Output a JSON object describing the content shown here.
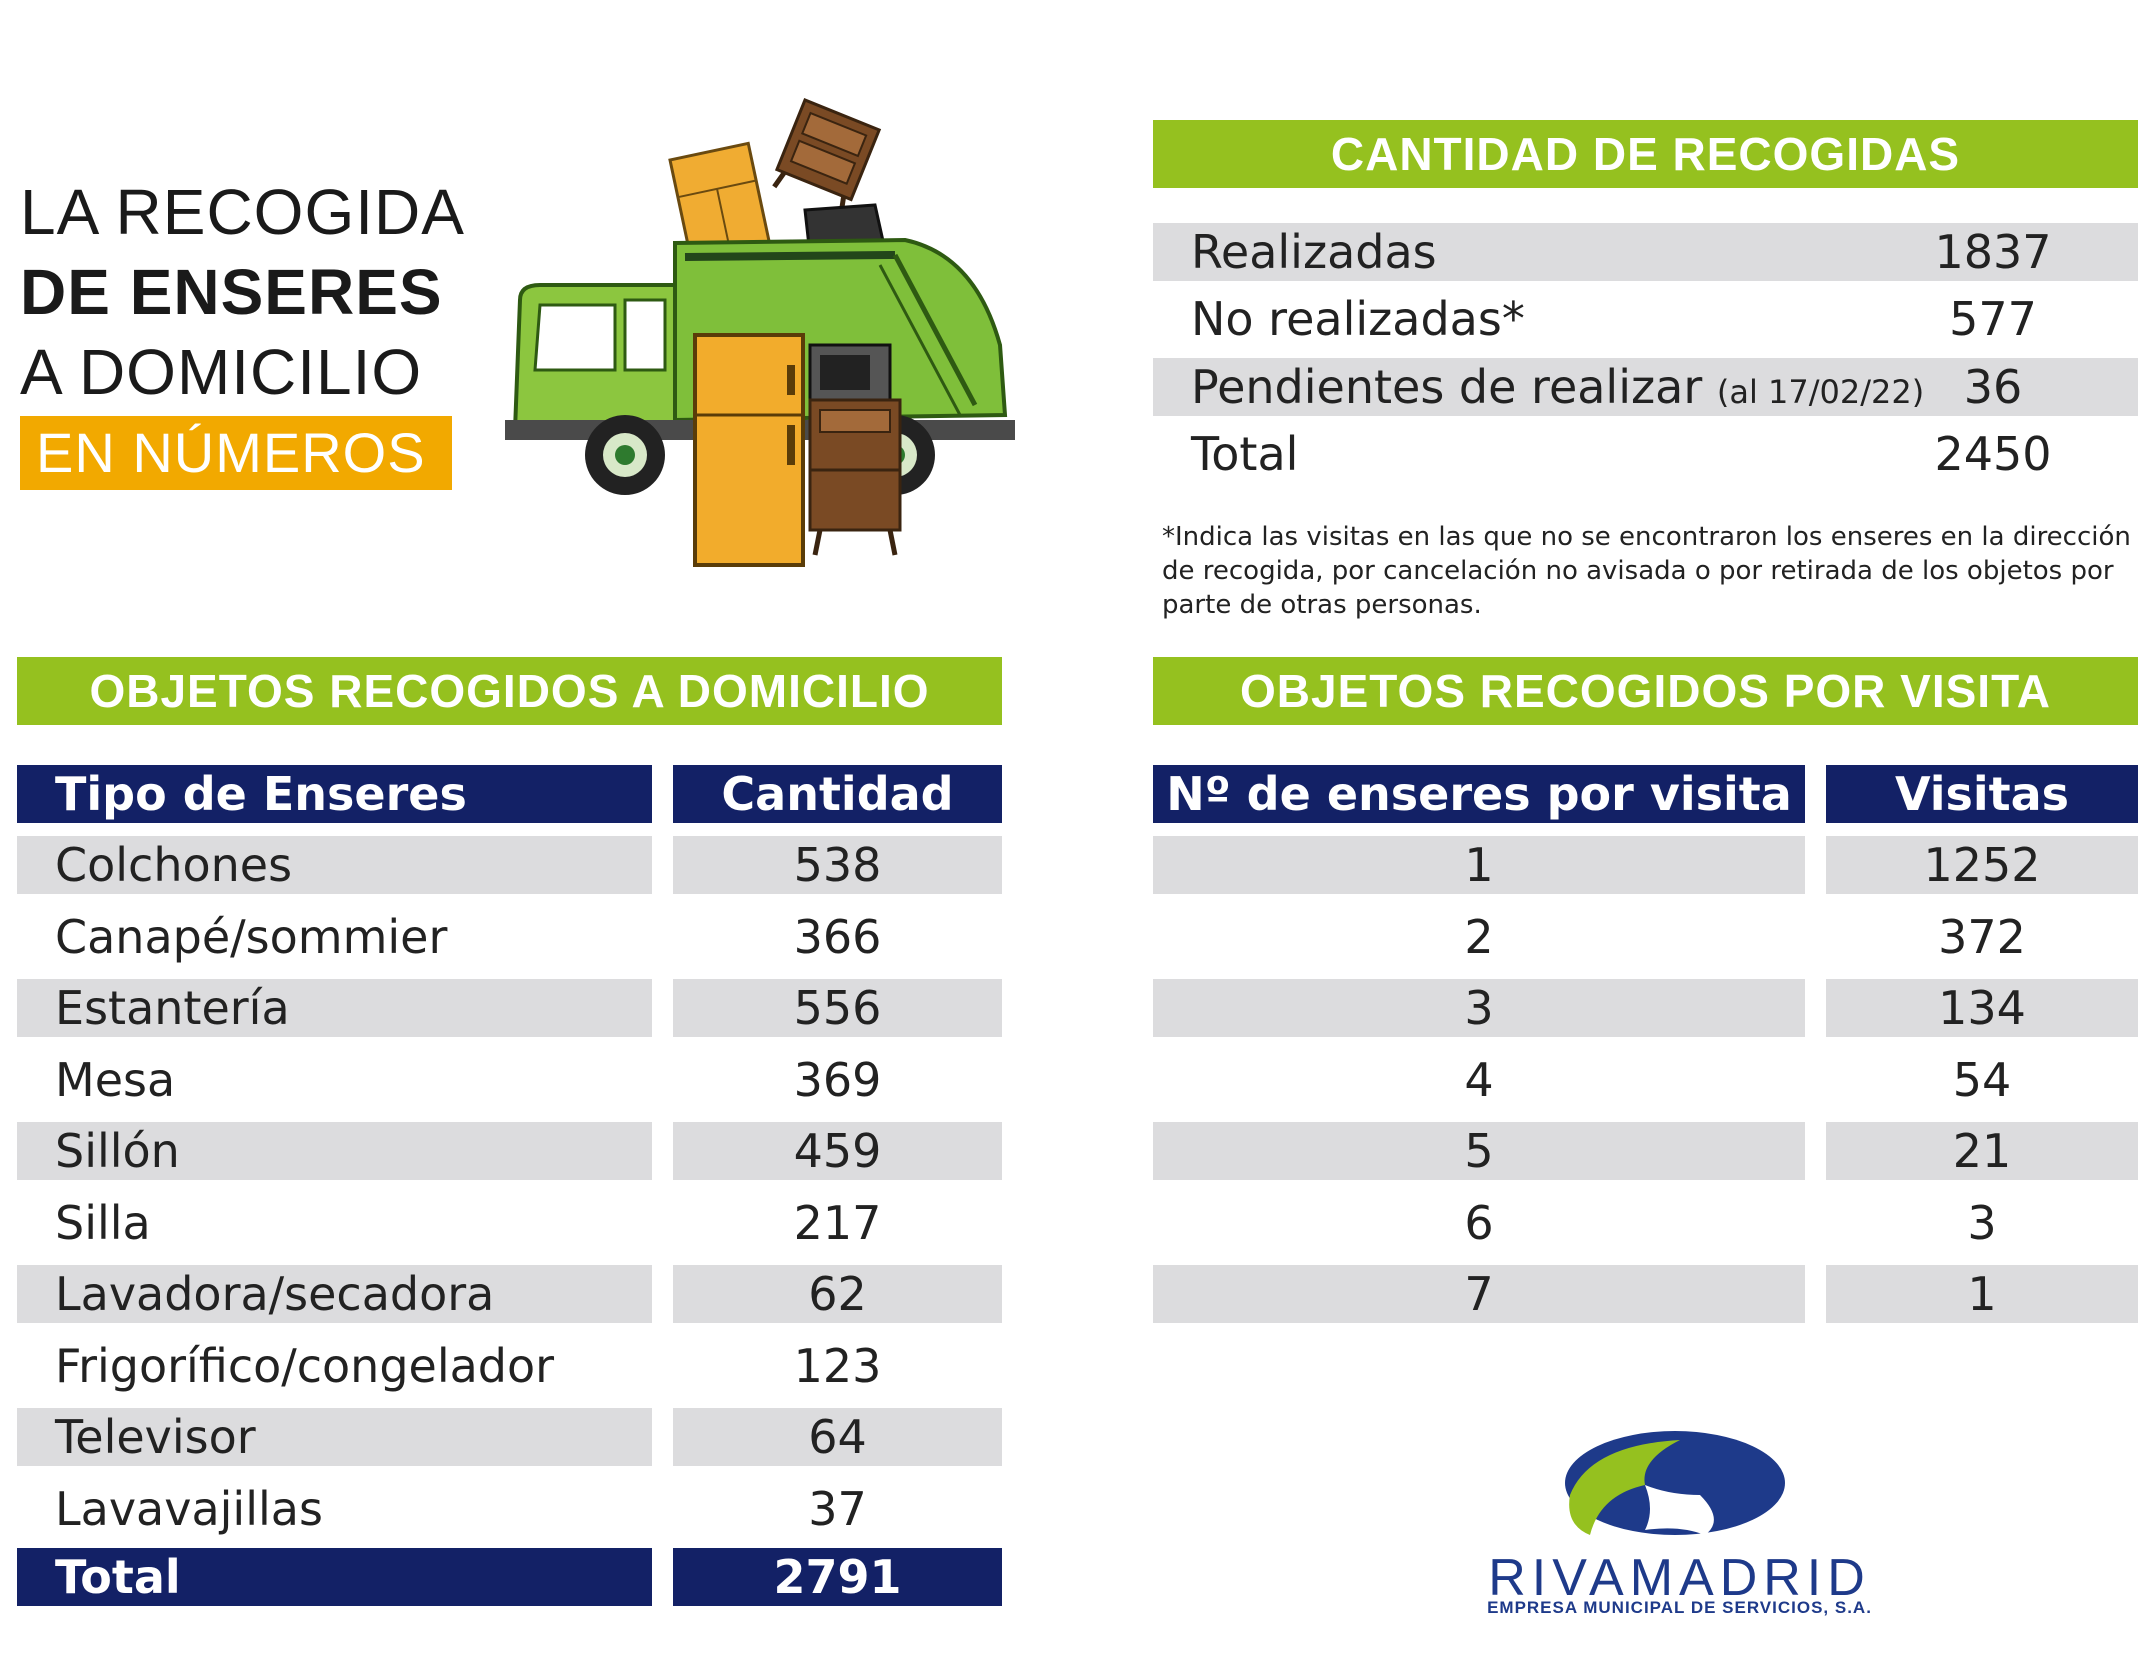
{
  "title": {
    "line1": "LA RECOGIDA",
    "line2": "DE ENSERES",
    "line3": "A DOMICILIO",
    "badge": "EN NÚMEROS"
  },
  "colors": {
    "green": "#95c11f",
    "navy": "#132166",
    "orange": "#f2a900",
    "row_grey": "#dcdcde"
  },
  "recogidas": {
    "header": "CANTIDAD DE RECOGIDAS",
    "rows": [
      {
        "label": "Realizadas",
        "note": "",
        "value": "1837"
      },
      {
        "label": "No realizadas*",
        "note": "",
        "value": "577"
      },
      {
        "label": "Pendientes de realizar",
        "note": "(al 17/02/22)",
        "value": "36"
      },
      {
        "label": "Total",
        "note": "",
        "value": "2450"
      }
    ],
    "footnote": "*Indica las visitas en las que no se encontraron los enseres en la dirección de recogida, por cancelación no avisada o por retirada de los objetos por parte de otras personas."
  },
  "objetos_domicilio": {
    "header": "OBJETOS RECOGIDOS A DOMICILIO",
    "col1": "Tipo de Enseres",
    "col2": "Cantidad",
    "rows": [
      {
        "tipo": "Colchones",
        "cantidad": "538"
      },
      {
        "tipo": "Canapé/sommier",
        "cantidad": "366"
      },
      {
        "tipo": "Estantería",
        "cantidad": "556"
      },
      {
        "tipo": "Mesa",
        "cantidad": "369"
      },
      {
        "tipo": "Sillón",
        "cantidad": "459"
      },
      {
        "tipo": "Silla",
        "cantidad": "217"
      },
      {
        "tipo": "Lavadora/secadora",
        "cantidad": "62"
      },
      {
        "tipo": "Frigorífico/congelador",
        "cantidad": "123"
      },
      {
        "tipo": "Televisor",
        "cantidad": "64"
      },
      {
        "tipo": "Lavavajillas",
        "cantidad": "37"
      }
    ],
    "total_label": "Total",
    "total_value": "2791"
  },
  "objetos_visita": {
    "header": "OBJETOS RECOGIDOS POR VISITA",
    "col1": "Nº de enseres por visita",
    "col2": "Visitas",
    "rows": [
      {
        "n": "1",
        "visitas": "1252"
      },
      {
        "n": "2",
        "visitas": "372"
      },
      {
        "n": "3",
        "visitas": "134"
      },
      {
        "n": "4",
        "visitas": "54"
      },
      {
        "n": "5",
        "visitas": "21"
      },
      {
        "n": "6",
        "visitas": "3"
      },
      {
        "n": "7",
        "visitas": "1"
      }
    ]
  },
  "logo": {
    "name": "RIVAMADRID",
    "subtitle": "EMPRESA MUNICIPAL DE SERVICIOS, S.A."
  }
}
